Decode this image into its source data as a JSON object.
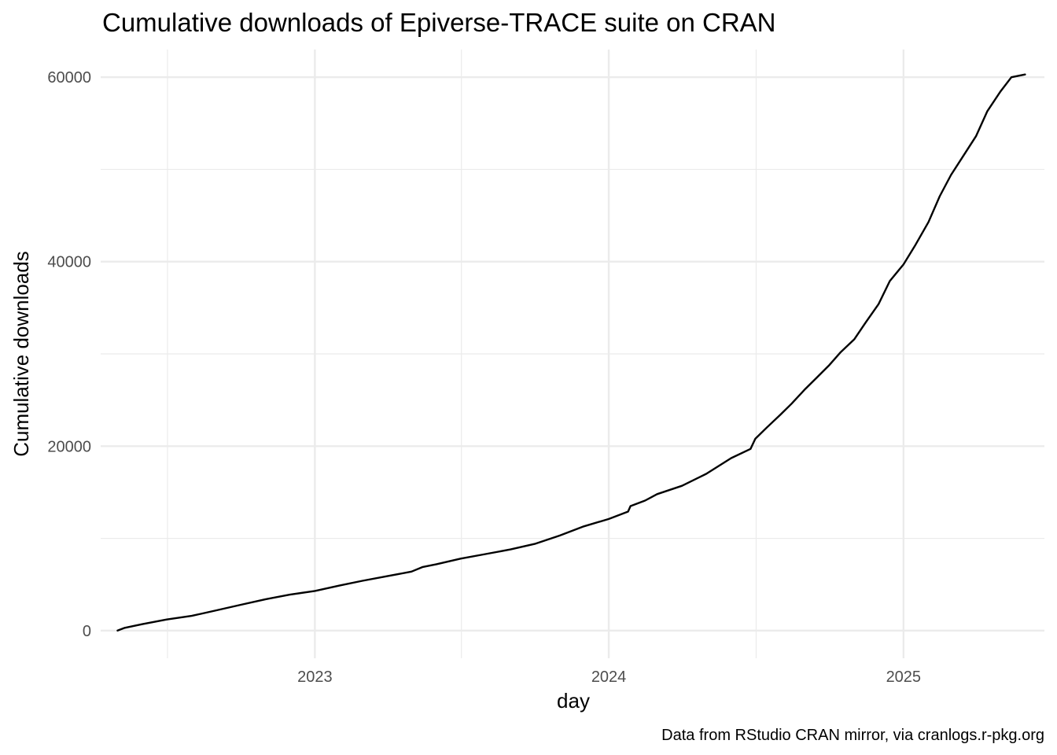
{
  "chart_data": {
    "type": "line",
    "title": "Cumulative downloads of Epiverse-TRACE suite on CRAN",
    "xlabel": "day",
    "ylabel": "Cumulative downloads",
    "caption": "Data from RStudio CRAN mirror, via cranlogs.r-pkg.org",
    "x_scale": "date",
    "xlim": [
      "2022-04-10",
      "2025-06-25"
    ],
    "ylim": [
      -3000,
      63000
    ],
    "x_ticks": [
      {
        "value": "2023-01-01",
        "label": "2023"
      },
      {
        "value": "2024-01-01",
        "label": "2024"
      },
      {
        "value": "2025-01-01",
        "label": "2025"
      }
    ],
    "x_minor_ticks": [
      "2022-07-02",
      "2023-07-02",
      "2024-07-02",
      "2025-07-02"
    ],
    "y_ticks": [
      {
        "value": 0,
        "label": "0"
      },
      {
        "value": 20000,
        "label": "20000"
      },
      {
        "value": 40000,
        "label": "40000"
      },
      {
        "value": 60000,
        "label": "60000"
      }
    ],
    "y_minor_ticks": [
      10000,
      30000,
      50000
    ],
    "grid": true,
    "legend": "none",
    "line_color": "#000000",
    "grid_color": "#ebebeb",
    "series": [
      {
        "x": [
          "2022-05-01",
          "2022-05-10",
          "2022-06-01",
          "2022-07-01",
          "2022-08-01",
          "2022-09-01",
          "2022-10-01",
          "2022-11-01",
          "2022-12-01",
          "2023-01-01",
          "2023-02-01",
          "2023-03-01",
          "2023-04-01",
          "2023-05-01",
          "2023-05-15",
          "2023-06-01",
          "2023-07-01",
          "2023-08-01",
          "2023-09-01",
          "2023-10-01",
          "2023-11-01",
          "2023-12-01",
          "2024-01-01",
          "2024-01-25",
          "2024-01-28",
          "2024-02-15",
          "2024-03-01",
          "2024-04-01",
          "2024-05-01",
          "2024-06-01",
          "2024-06-25",
          "2024-07-01",
          "2024-07-15",
          "2024-08-01",
          "2024-08-15",
          "2024-09-01",
          "2024-09-15",
          "2024-10-01",
          "2024-10-15",
          "2024-11-01",
          "2024-11-15",
          "2024-12-01",
          "2024-12-15",
          "2025-01-01",
          "2025-01-15",
          "2025-02-01",
          "2025-02-15",
          "2025-03-01",
          "2025-03-15",
          "2025-04-01",
          "2025-04-15",
          "2025-05-01",
          "2025-05-15",
          "2025-06-01"
        ],
        "values": [
          0,
          300,
          700,
          1200,
          1600,
          2200,
          2800,
          3400,
          3900,
          4300,
          4900,
          5400,
          5900,
          6400,
          6900,
          7200,
          7800,
          8300,
          8800,
          9400,
          10300,
          11300,
          12100,
          12900,
          13500,
          14100,
          14800,
          15700,
          17000,
          18700,
          19700,
          20800,
          22000,
          23400,
          24600,
          26200,
          27400,
          28800,
          30200,
          31600,
          33400,
          35400,
          37900,
          39700,
          41700,
          44300,
          47100,
          49400,
          51300,
          53600,
          56300,
          58400,
          60000,
          60300
        ]
      }
    ]
  }
}
